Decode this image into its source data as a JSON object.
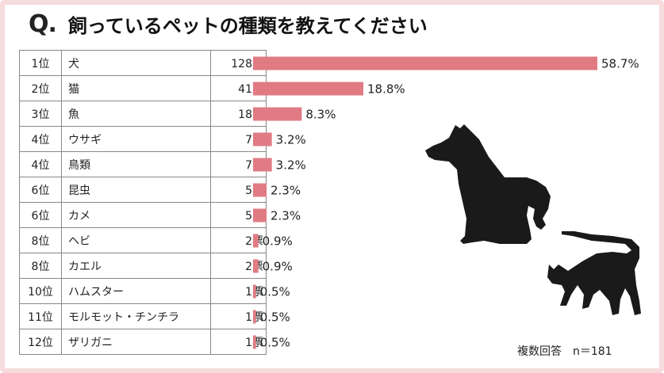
{
  "title": {
    "mark": "Q",
    "dot": ".",
    "text": "飼っているペットの種類を教えてください"
  },
  "footnote": "複数回答　n＝181",
  "colors": {
    "bar": "#e07b84",
    "border": "#f6dcdc",
    "silhouette": "#1a1a1a"
  },
  "icons": [
    "dog-silhouette-icon",
    "cat-silhouette-icon"
  ],
  "chart_data": {
    "type": "bar",
    "orientation": "horizontal",
    "categories": [
      "犬",
      "猫",
      "魚",
      "ウサギ",
      "鳥類",
      "昆虫",
      "カメ",
      "ヘビ",
      "カエル",
      "ハムスター",
      "モルモット・チンチラ",
      "ザリガニ"
    ],
    "ranks": [
      "1位",
      "2位",
      "3位",
      "4位",
      "4位",
      "6位",
      "6位",
      "8位",
      "8位",
      "10位",
      "11位",
      "12位"
    ],
    "votes": [
      "128票",
      "41票",
      "18票",
      "7票",
      "7票",
      "5票",
      "5票",
      "2票",
      "2票",
      "1票",
      "1票",
      "1票"
    ],
    "values": [
      58.7,
      18.8,
      8.3,
      3.2,
      3.2,
      2.3,
      2.3,
      0.9,
      0.9,
      0.5,
      0.5,
      0.5
    ],
    "value_labels": [
      "58.7%",
      "18.8%",
      "8.3%",
      "3.2%",
      "3.2%",
      "2.3%",
      "2.3%",
      "0.9%",
      "0.9%",
      "0.5%",
      "0.5%",
      "0.5%"
    ],
    "grid": false,
    "legend": "none"
  }
}
